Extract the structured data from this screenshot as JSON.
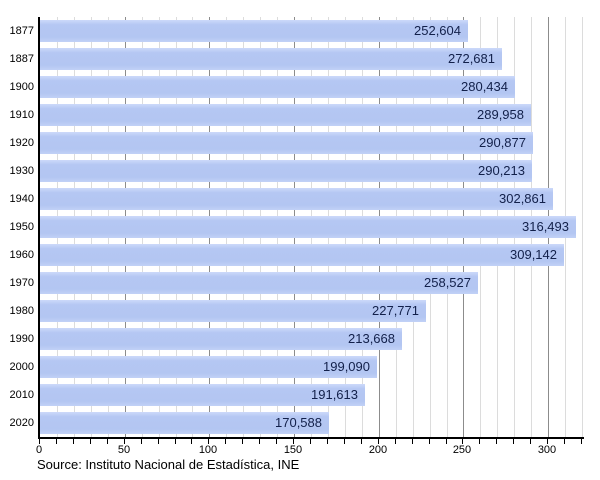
{
  "chart_data": {
    "type": "bar",
    "orientation": "horizontal",
    "title": "",
    "xlabel": "",
    "ylabel": "",
    "categories": [
      "1877",
      "1887",
      "1900",
      "1910",
      "1920",
      "1930",
      "1940",
      "1950",
      "1960",
      "1970",
      "1980",
      "1990",
      "2000",
      "2010",
      "2020"
    ],
    "values": [
      252604,
      272681,
      280434,
      289958,
      290877,
      290213,
      302861,
      316493,
      309142,
      258527,
      227771,
      213668,
      199090,
      191613,
      170588
    ],
    "value_labels": [
      "252,604",
      "272,681",
      "280,434",
      "289,958",
      "290,877",
      "290,213",
      "302,861",
      "316,493",
      "309,142",
      "258,527",
      "227,771",
      "213,668",
      "199,090",
      "191,613",
      "170,588"
    ],
    "xlim": [
      0,
      320000
    ],
    "x_tick_values": [
      0,
      50000,
      100000,
      150000,
      200000,
      250000,
      300000
    ],
    "x_tick_labels": [
      "0",
      "50",
      "100",
      "150",
      "200",
      "250",
      "300"
    ],
    "grid_minor_step": 10000,
    "grid_major_step": 50000,
    "grid": true,
    "legend": "none"
  },
  "colors": {
    "bar_fill": "#b5c7f3",
    "value_text": "#12204a",
    "axis": "#000000",
    "grid_minor": "#dcdcdc",
    "grid_major": "#8c8c8c",
    "background": "#ffffff"
  },
  "footer": {
    "source": "Source: Instituto Nacional de Estadística, INE"
  }
}
